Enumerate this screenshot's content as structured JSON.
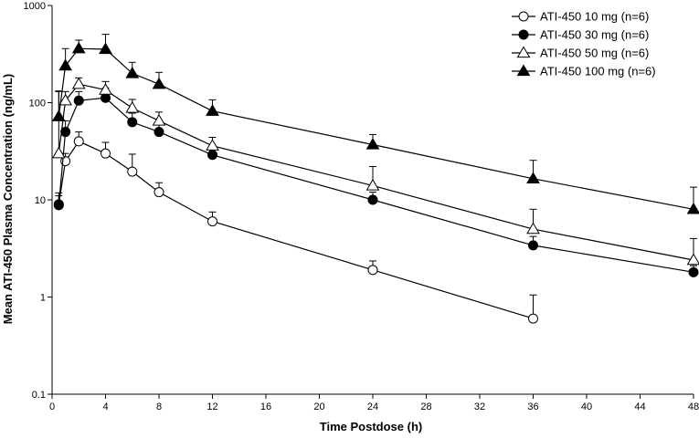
{
  "chart_data": {
    "type": "line",
    "xlabel": "Time Postdose (h)",
    "ylabel": "Mean ATI-450 Plasma Concentration (ng/mL)",
    "xlim": [
      0,
      48
    ],
    "ylim": [
      0.1,
      1000
    ],
    "yscale": "log",
    "grid": false,
    "legend_position": "top-right",
    "x_ticks": [
      "0",
      "4",
      "8",
      "12",
      "16",
      "20",
      "24",
      "28",
      "32",
      "36",
      "40",
      "44",
      "48"
    ],
    "y_ticks": [
      "0.1",
      "1",
      "10",
      "100",
      "1000"
    ],
    "series": [
      {
        "name": "ATI-450 10 mg (n=6)",
        "marker": "circle-open",
        "points": [
          {
            "x": 0.5,
            "y": 9,
            "err": 2
          },
          {
            "x": 1,
            "y": 25,
            "err": 5
          },
          {
            "x": 2,
            "y": 40,
            "err": 10
          },
          {
            "x": 4,
            "y": 30,
            "err": 9
          },
          {
            "x": 6,
            "y": 19.5,
            "err": 10
          },
          {
            "x": 8,
            "y": 12,
            "err": 3
          },
          {
            "x": 12,
            "y": 6,
            "err": 1.5
          },
          {
            "x": 24,
            "y": 1.9,
            "err": 0.45
          },
          {
            "x": 36,
            "y": 0.6,
            "err": 0.45
          }
        ]
      },
      {
        "name": "ATI-450 30 mg (n=6)",
        "marker": "circle-filled",
        "points": [
          {
            "x": 0.5,
            "y": 8.8,
            "err": 3
          },
          {
            "x": 1,
            "y": 50,
            "err": 15
          },
          {
            "x": 2,
            "y": 105,
            "err": 25
          },
          {
            "x": 4,
            "y": 112,
            "err": 30
          },
          {
            "x": 6,
            "y": 63,
            "err": 15
          },
          {
            "x": 8,
            "y": 50,
            "err": 10
          },
          {
            "x": 12,
            "y": 29,
            "err": 5
          },
          {
            "x": 24,
            "y": 10,
            "err": 2
          },
          {
            "x": 36,
            "y": 3.4,
            "err": 0.8
          },
          {
            "x": 48,
            "y": 1.8,
            "err": 0.3
          }
        ]
      },
      {
        "name": "ATI-450 50 mg (n=6)",
        "marker": "triangle-open",
        "points": [
          {
            "x": 0.5,
            "y": 30,
            "err": 100
          },
          {
            "x": 1,
            "y": 105,
            "err": 25
          },
          {
            "x": 2,
            "y": 155,
            "err": 25
          },
          {
            "x": 4,
            "y": 135,
            "err": 30
          },
          {
            "x": 6,
            "y": 88,
            "err": 20
          },
          {
            "x": 8,
            "y": 65,
            "err": 15
          },
          {
            "x": 12,
            "y": 36,
            "err": 8
          },
          {
            "x": 24,
            "y": 14,
            "err": 8
          },
          {
            "x": 36,
            "y": 5,
            "err": 3
          },
          {
            "x": 48,
            "y": 2.4,
            "err": 1.6
          }
        ]
      },
      {
        "name": "ATI-450 100 mg (n=6)",
        "marker": "triangle-filled",
        "points": [
          {
            "x": 0.5,
            "y": 72,
            "err": 60
          },
          {
            "x": 1,
            "y": 240,
            "err": 120
          },
          {
            "x": 2,
            "y": 360,
            "err": 80
          },
          {
            "x": 4,
            "y": 355,
            "err": 150
          },
          {
            "x": 6,
            "y": 200,
            "err": 60
          },
          {
            "x": 8,
            "y": 155,
            "err": 50
          },
          {
            "x": 12,
            "y": 82,
            "err": 25
          },
          {
            "x": 24,
            "y": 37,
            "err": 10
          },
          {
            "x": 36,
            "y": 16.5,
            "err": 9
          },
          {
            "x": 48,
            "y": 8,
            "err": 5.5
          }
        ]
      }
    ]
  }
}
